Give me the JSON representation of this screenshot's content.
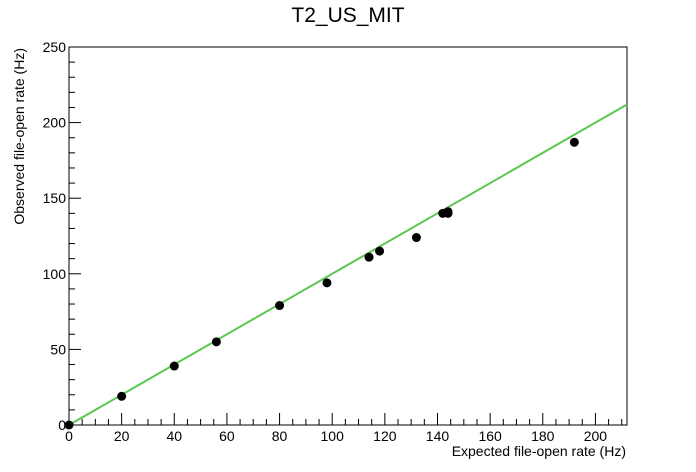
{
  "chart_data": {
    "type": "scatter",
    "title": "T2_US_MIT",
    "xlabel": "Expected file-open rate (Hz)",
    "ylabel": "Observed file-open rate (Hz)",
    "xlim": [
      0,
      212
    ],
    "ylim": [
      0,
      250
    ],
    "xticks": [
      0,
      20,
      40,
      60,
      80,
      100,
      120,
      140,
      160,
      180,
      200
    ],
    "yticks": [
      0,
      50,
      100,
      150,
      200,
      250
    ],
    "grid": false,
    "points": [
      {
        "x": 0,
        "y": 0
      },
      {
        "x": 20,
        "y": 19
      },
      {
        "x": 40,
        "y": 39
      },
      {
        "x": 56,
        "y": 55
      },
      {
        "x": 80,
        "y": 79
      },
      {
        "x": 98,
        "y": 94
      },
      {
        "x": 114,
        "y": 111
      },
      {
        "x": 118,
        "y": 115
      },
      {
        "x": 132,
        "y": 124
      },
      {
        "x": 142,
        "y": 140
      },
      {
        "x": 144,
        "y": 141
      },
      {
        "x": 144,
        "y": 140
      },
      {
        "x": 192,
        "y": 187
      }
    ],
    "fit_line": {
      "x": [
        0,
        212
      ],
      "y": [
        0,
        212
      ]
    },
    "marker_color": "#000000",
    "line_color": "#5ac74f"
  }
}
